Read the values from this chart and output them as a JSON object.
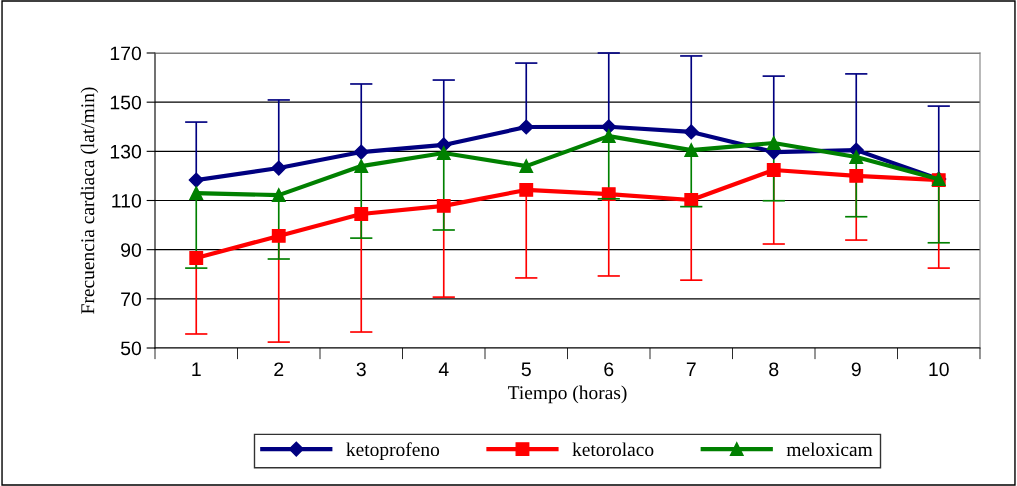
{
  "chart_data": {
    "type": "line",
    "xlabel": "Tiempo (horas)",
    "ylabel": "Frecuencia cardiaca (lat/min)",
    "categories": [
      "1",
      "2",
      "3",
      "4",
      "5",
      "6",
      "7",
      "8",
      "9",
      "10"
    ],
    "series": [
      {
        "name": "ketoprofeno",
        "color": "#000080",
        "marker": "diamond",
        "values": [
          118.3,
          123.2,
          129.7,
          132.6,
          139.9,
          140,
          137.9,
          129.7,
          130.5,
          118.7
        ],
        "errors": [
          [
            118.3,
            141.9
          ],
          [
            123.2,
            150.9
          ],
          [
            129.7,
            157.4
          ],
          [
            132.6,
            159
          ],
          [
            139.9,
            165.9
          ],
          [
            140,
            170
          ],
          [
            137.9,
            168.8
          ],
          [
            129.7,
            160.6
          ],
          [
            130.5,
            161.5
          ],
          [
            118.7,
            148.4
          ]
        ]
      },
      {
        "name": "ketorolaco",
        "color": "#ff0000",
        "marker": "square",
        "values": [
          86.6,
          95.6,
          104.5,
          107.8,
          114.3,
          112.6,
          110.2,
          122.4,
          120,
          118.3
        ],
        "errors": [
          [
            55.7,
            86.6
          ],
          [
            52.4,
            95.6
          ],
          [
            56.5,
            104.5
          ],
          [
            70.7,
            107.8
          ],
          [
            78.5,
            114.3
          ],
          [
            79.3,
            112.6
          ],
          [
            77.6,
            110.2
          ],
          [
            92.3,
            122.4
          ],
          [
            93.9,
            120
          ],
          [
            82.5,
            118.3
          ]
        ]
      },
      {
        "name": "meloxicam",
        "color": "#008000",
        "marker": "triangle",
        "values": [
          113,
          112.2,
          124,
          129.3,
          124,
          136.2,
          130.5,
          133.4,
          127.7,
          118.7
        ],
        "errors": [
          [
            82.5,
            113
          ],
          [
            86.2,
            112.2
          ],
          [
            94.7,
            124
          ],
          [
            98,
            129.3
          ],
          null,
          [
            110.7,
            136.2
          ],
          [
            107.5,
            130.5
          ],
          [
            109.9,
            133.4
          ],
          [
            103.4,
            127.7
          ],
          [
            92.8,
            118.7
          ]
        ]
      }
    ],
    "ylim": [
      50,
      170
    ],
    "yticks": [
      50,
      70,
      90,
      110,
      130,
      150,
      170
    ],
    "grid": "y",
    "legend": "bottom",
    "line_style": "solid"
  }
}
